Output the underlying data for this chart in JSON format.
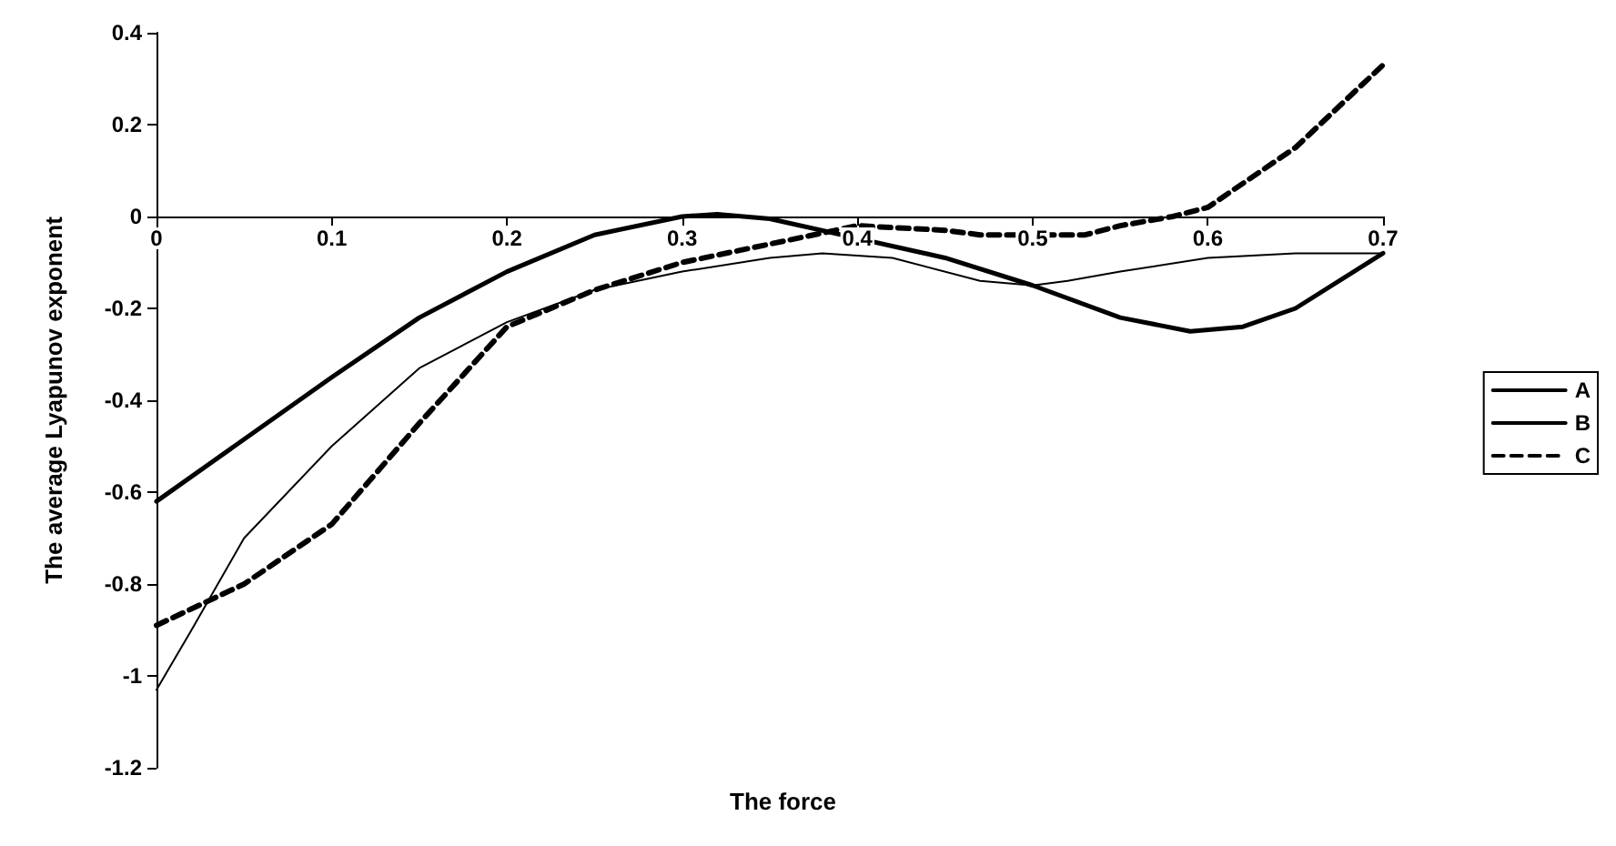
{
  "chart_data": {
    "type": "line",
    "xlabel": "The force",
    "ylabel": "The average Lyapunov exponent",
    "xlim": [
      0,
      0.7
    ],
    "xticks": [
      0,
      0.1,
      0.2,
      0.3,
      0.4,
      0.5,
      0.6,
      0.7
    ],
    "ylim": [
      -1.2,
      0.4
    ],
    "yticks": [
      -1.2,
      -1,
      -0.8,
      -0.6,
      -0.4,
      -0.2,
      0,
      0.2,
      0.4
    ],
    "grid": false,
    "legend": "right",
    "marker": "none",
    "series": [
      {
        "name": "A",
        "color": "#000000",
        "line_style": "solid",
        "x": [
          0,
          0.1,
          0.15,
          0.2,
          0.25,
          0.3,
          0.32,
          0.35,
          0.45,
          0.5,
          0.55,
          0.59,
          0.62,
          0.65,
          0.7
        ],
        "values": [
          -0.62,
          -0.35,
          -0.22,
          -0.12,
          -0.04,
          0,
          0.005,
          -0.005,
          -0.09,
          -0.15,
          -0.22,
          -0.25,
          -0.24,
          -0.2,
          -0.08
        ]
      },
      {
        "name": "B",
        "color": "#000000",
        "line_style": "solid",
        "x": [
          0,
          0.02,
          0.05,
          0.1,
          0.15,
          0.2,
          0.25,
          0.3,
          0.35,
          0.38,
          0.42,
          0.47,
          0.5,
          0.52,
          0.55,
          0.6,
          0.65,
          0.7
        ],
        "values": [
          -1.03,
          -0.9,
          -0.7,
          -0.5,
          -0.33,
          -0.23,
          -0.16,
          -0.12,
          -0.09,
          -0.08,
          -0.09,
          -0.14,
          -0.15,
          -0.14,
          -0.12,
          -0.09,
          -0.08,
          -0.08
        ]
      },
      {
        "name": "C",
        "color": "#000000",
        "line_style": "dashed",
        "x": [
          0,
          0.05,
          0.1,
          0.15,
          0.2,
          0.25,
          0.3,
          0.35,
          0.4,
          0.45,
          0.47,
          0.53,
          0.55,
          0.58,
          0.6,
          0.65,
          0.7
        ],
        "values": [
          -0.89,
          -0.8,
          -0.67,
          -0.45,
          -0.24,
          -0.16,
          -0.1,
          -0.06,
          -0.02,
          -0.03,
          -0.04,
          -0.04,
          -0.02,
          0,
          0.02,
          0.15,
          0.33
        ]
      }
    ]
  }
}
